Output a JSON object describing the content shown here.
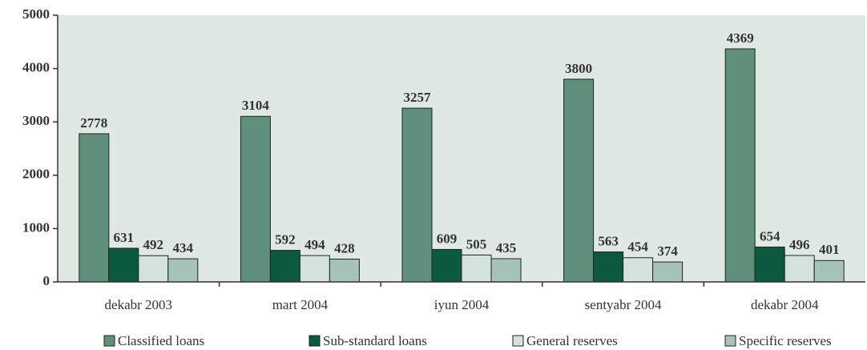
{
  "chart_data": {
    "type": "bar",
    "categories": [
      "dekabr 2003",
      "mart 2004",
      "iyun 2004",
      "sentyabr 2004",
      "dekabr 2004"
    ],
    "series": [
      {
        "name": "Classified loans",
        "color": "#5e8f78",
        "values": [
          2778,
          3104,
          3257,
          3800,
          4369
        ]
      },
      {
        "name": "Sub-standard loans",
        "color": "#0b5a40",
        "values": [
          631,
          592,
          609,
          563,
          654
        ]
      },
      {
        "name": "General reserves",
        "color": "#d3e2db",
        "values": [
          492,
          494,
          505,
          454,
          496
        ]
      },
      {
        "name": "Specific reserves",
        "color": "#a6c4b6",
        "values": [
          434,
          428,
          435,
          374,
          401
        ]
      }
    ],
    "ylim": [
      0,
      5000
    ],
    "yticks": [
      0,
      1000,
      2000,
      3000,
      4000,
      5000
    ],
    "legend": "bottom"
  }
}
